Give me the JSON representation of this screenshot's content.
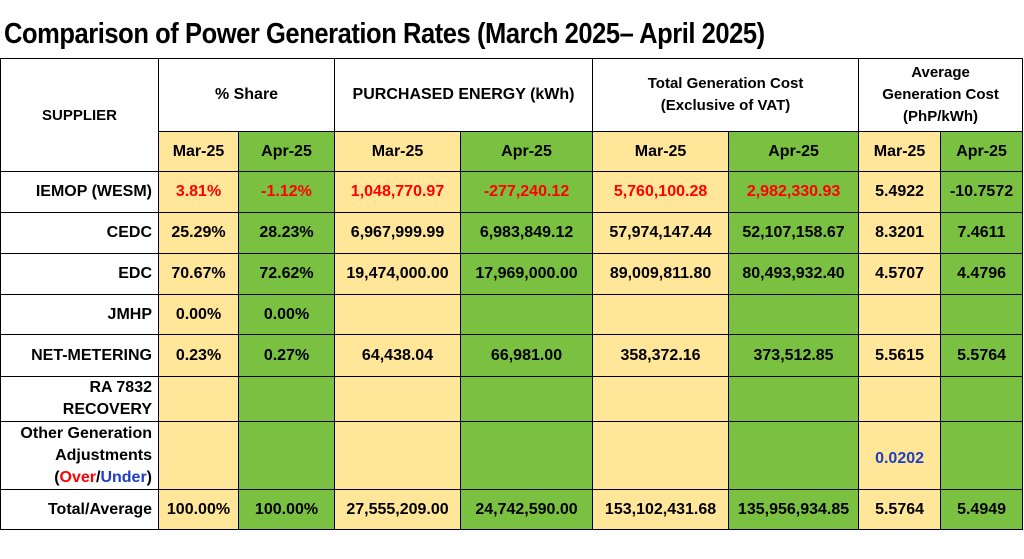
{
  "title": "Comparison of Power Generation Rates (March 2025– April 2025)",
  "headers": {
    "supplier": "SUPPLIER",
    "share": "% Share",
    "energy": "PURCHASED ENERGY (kWh)",
    "cost_line1": "Total Generation Cost",
    "cost_line2": "(Exclusive of VAT)",
    "avg_line1": "Average",
    "avg_line2": "Generation Cost",
    "avg_line3": "(PhP/kWh)",
    "months": [
      "Mar-25",
      "Apr-25",
      "Mar-25",
      "Apr-25",
      "Mar-25",
      "Apr-25",
      "Mar-25",
      "Apr-25"
    ]
  },
  "rows": [
    {
      "supplier": "IEMOP (WESM)",
      "cells": [
        "3.81%",
        "-1.12%",
        "1,048,770.97",
        "-277,240.12",
        "5,760,100.28",
        "2,982,330.93",
        "5.4922",
        "-10.7572"
      ]
    },
    {
      "supplier": "CEDC",
      "cells": [
        "25.29%",
        "28.23%",
        "6,967,999.99",
        "6,983,849.12",
        "57,974,147.44",
        "52,107,158.67",
        "8.3201",
        "7.4611"
      ]
    },
    {
      "supplier": "EDC",
      "cells": [
        "70.67%",
        "72.62%",
        "19,474,000.00",
        "17,969,000.00",
        "89,009,811.80",
        "80,493,932.40",
        "4.5707",
        "4.4796"
      ]
    },
    {
      "supplier": "JMHP",
      "cells": [
        "0.00%",
        "0.00%",
        "",
        "",
        "",
        "",
        "",
        ""
      ]
    },
    {
      "supplier": "NET-METERING",
      "cells": [
        "0.23%",
        "0.27%",
        "64,438.04",
        "66,981.00",
        "358,372.16",
        "373,512.85",
        "5.5615",
        "5.5764"
      ]
    },
    {
      "supplier_line1": "RA 7832",
      "supplier_line2": "RECOVERY",
      "cells": [
        "",
        "",
        "",
        "",
        "",
        "",
        "",
        ""
      ]
    },
    {
      "supplier_line1": "Other Generation",
      "supplier_line2": "Adjustments",
      "over": "Over",
      "slash": "/",
      "under": "Under",
      "cells": [
        "",
        "",
        "",
        "",
        "",
        "",
        "0.0202",
        ""
      ]
    },
    {
      "supplier": "Total/Average",
      "cells": [
        "100.00%",
        "100.00%",
        "27,555,209.00",
        "24,742,590.00",
        "153,102,431.68",
        "135,956,934.85",
        "5.5764",
        "5.4949"
      ]
    }
  ],
  "colors": {
    "march_fill": "#ffe699",
    "april_fill": "#7ac142",
    "negative_text": "#ff0000",
    "under_text": "#1f3fbf"
  }
}
